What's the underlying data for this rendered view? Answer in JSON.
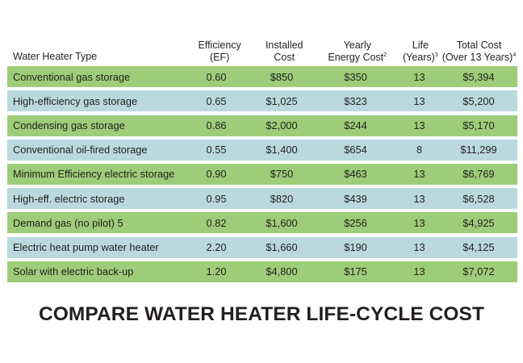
{
  "colors": {
    "row_green": "#9dcd78",
    "row_blue": "#b9d9df",
    "text": "#231f20"
  },
  "headers": [
    {
      "lines": [
        "Water Heater Type"
      ],
      "sup": ""
    },
    {
      "lines": [
        "Efficiency",
        "(EF)"
      ],
      "sup": ""
    },
    {
      "lines": [
        "Installed",
        "Cost"
      ],
      "sup": ""
    },
    {
      "lines": [
        "Yearly",
        "Energy Cost"
      ],
      "sup": "2"
    },
    {
      "lines": [
        "Life",
        "(Years)"
      ],
      "sup": "3"
    },
    {
      "lines": [
        "Total Cost",
        "(Over 13 Years)"
      ],
      "sup": "4"
    }
  ],
  "rows": [
    {
      "type": "Conventional gas storage",
      "ef": "0.60",
      "installed": "$850",
      "yearly": "$350",
      "life": "13",
      "total": "$5,394"
    },
    {
      "type": "High-efficiency gas storage",
      "ef": "0.65",
      "installed": "$1,025",
      "yearly": "$323",
      "life": "13",
      "total": "$5,200"
    },
    {
      "type": "Condensing gas storage",
      "ef": "0.86",
      "installed": "$2,000",
      "yearly": "$244",
      "life": "13",
      "total": "$5,170"
    },
    {
      "type": "Conventional oil-fired storage",
      "ef": "0.55",
      "installed": "$1,400",
      "yearly": "$654",
      "life": "8",
      "total": "$11,299"
    },
    {
      "type": "Minimum Efficiency electric storage",
      "ef": "0.90",
      "installed": "$750",
      "yearly": "$463",
      "life": "13",
      "total": "$6,769"
    },
    {
      "type": "High-eff. electric storage",
      "ef": "0.95",
      "installed": "$820",
      "yearly": "$439",
      "life": "13",
      "total": "$6,528"
    },
    {
      "type": "Demand gas (no pilot) 5",
      "ef": "0.82",
      "installed": "$1,600",
      "yearly": "$256",
      "life": "13",
      "total": "$4,925"
    },
    {
      "type": "Electric heat pump water heater",
      "ef": "2.20",
      "installed": "$1,660",
      "yearly": "$190",
      "life": "13",
      "total": "$4,125"
    },
    {
      "type": "Solar with electric back-up",
      "ef": "1.20",
      "installed": "$4,800",
      "yearly": "$175",
      "life": "13",
      "total": "$7,072"
    }
  ],
  "title": "COMPARE WATER HEATER LIFE-CYCLE COST"
}
